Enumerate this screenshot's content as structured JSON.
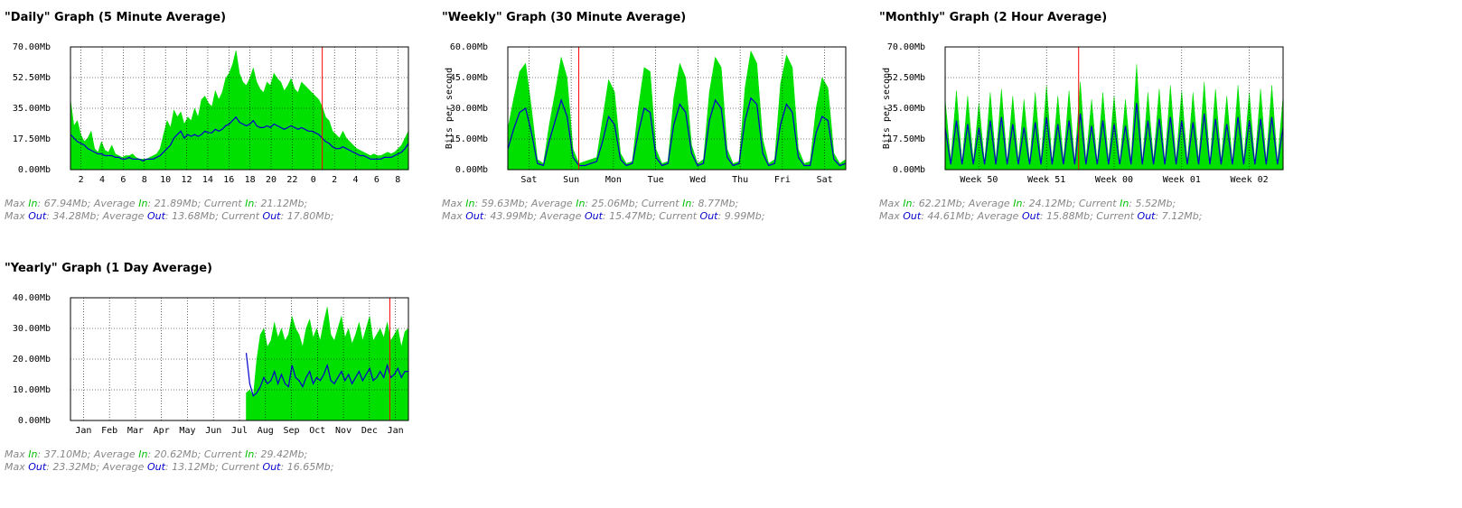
{
  "colors": {
    "in": "#00e000",
    "out": "#0000cc",
    "now": "#ff0000",
    "grid": "#000000"
  },
  "labels": {
    "max": "Max",
    "average": "Average",
    "current": "Current",
    "in": "In",
    "out": "Out",
    "sep": ":",
    "end": ";"
  },
  "ylabel": "Bits per second",
  "chart_data": [
    {
      "key": "daily",
      "type": "area",
      "title": "\"Daily\" Graph (5 Minute Average)",
      "ylim": [
        0,
        70
      ],
      "yticks": [
        "0.00Mb",
        "17.50Mb",
        "35.00Mb",
        "52.50Mb",
        "70.00Mb"
      ],
      "ylabel": "",
      "xticks": [
        "2",
        "4",
        "6",
        "8",
        "10",
        "12",
        "14",
        "16",
        "18",
        "20",
        "22",
        "0",
        "2",
        "4",
        "6",
        "8"
      ],
      "grid": true,
      "now_marker": 0.745,
      "series": [
        {
          "name": "In",
          "values": [
            40,
            25,
            28,
            20,
            16,
            18,
            22,
            12,
            10,
            16,
            11,
            10,
            14,
            9,
            8,
            7,
            8,
            8,
            9,
            7,
            6,
            6,
            6,
            7,
            8,
            9,
            12,
            20,
            28,
            24,
            34,
            30,
            33,
            26,
            30,
            28,
            35,
            30,
            40,
            42,
            38,
            36,
            45,
            40,
            44,
            52,
            55,
            60,
            68,
            55,
            50,
            48,
            52,
            58,
            50,
            46,
            44,
            50,
            48,
            55,
            52,
            50,
            45,
            48,
            52,
            46,
            44,
            50,
            48,
            46,
            44,
            42,
            40,
            36,
            30,
            28,
            22,
            20,
            18,
            22,
            18,
            16,
            14,
            12,
            11,
            10,
            9,
            8,
            9,
            8,
            8,
            9,
            10,
            9,
            10,
            12,
            14,
            18,
            22
          ]
        },
        {
          "name": "Out",
          "values": [
            20,
            18,
            16,
            15,
            14,
            12,
            11,
            10,
            9,
            9,
            8,
            8,
            8,
            7,
            7,
            6,
            6,
            7,
            6,
            6,
            6,
            5,
            6,
            6,
            6,
            7,
            8,
            10,
            12,
            14,
            18,
            20,
            22,
            18,
            20,
            19,
            20,
            19,
            20,
            22,
            21,
            21,
            23,
            22,
            23,
            25,
            26,
            28,
            30,
            27,
            26,
            25,
            26,
            28,
            25,
            24,
            24,
            25,
            24,
            26,
            25,
            24,
            23,
            24,
            25,
            24,
            23,
            24,
            23,
            22,
            22,
            21,
            20,
            18,
            16,
            15,
            13,
            12,
            12,
            13,
            12,
            11,
            10,
            9,
            8,
            8,
            7,
            6,
            6,
            6,
            6,
            7,
            7,
            7,
            8,
            9,
            10,
            12,
            15
          ]
        }
      ],
      "stats": {
        "in": {
          "max": "67.94Mb",
          "avg": "21.89Mb",
          "cur": "21.12Mb"
        },
        "out": {
          "max": "34.28Mb",
          "avg": "13.68Mb",
          "cur": "17.80Mb"
        }
      }
    },
    {
      "key": "weekly",
      "type": "area",
      "title": "\"Weekly\" Graph (30 Minute Average)",
      "ylim": [
        0,
        60
      ],
      "yticks": [
        "0.00Mb",
        "15.00Mb",
        "30.00Mb",
        "45.00Mb",
        "60.00Mb"
      ],
      "ylabel": "Bits per second",
      "xticks": [
        "Sat",
        "Sun",
        "Mon",
        "Tue",
        "Wed",
        "Thu",
        "Fri",
        "Sat"
      ],
      "grid": true,
      "now_marker": 0.21,
      "series": [
        {
          "name": "In",
          "values": [
            20,
            35,
            48,
            52,
            30,
            5,
            3,
            22,
            38,
            55,
            45,
            10,
            3,
            4,
            5,
            6,
            25,
            44,
            38,
            8,
            3,
            4,
            30,
            50,
            48,
            10,
            3,
            4,
            35,
            52,
            45,
            12,
            3,
            5,
            38,
            55,
            50,
            10,
            3,
            4,
            40,
            58,
            52,
            15,
            3,
            5,
            42,
            56,
            50,
            10,
            3,
            4,
            30,
            45,
            40,
            8,
            3,
            5
          ]
        },
        {
          "name": "Out",
          "values": [
            10,
            20,
            28,
            30,
            18,
            3,
            2,
            14,
            24,
            34,
            26,
            6,
            2,
            2,
            3,
            4,
            14,
            26,
            22,
            5,
            2,
            3,
            18,
            30,
            28,
            6,
            2,
            3,
            22,
            32,
            28,
            8,
            2,
            3,
            24,
            34,
            30,
            6,
            2,
            3,
            24,
            35,
            32,
            8,
            2,
            3,
            22,
            32,
            28,
            6,
            2,
            2,
            18,
            26,
            24,
            5,
            2,
            3
          ]
        }
      ],
      "stats": {
        "in": {
          "max": "59.63Mb",
          "avg": "25.06Mb",
          "cur": "8.77Mb"
        },
        "out": {
          "max": "43.99Mb",
          "avg": "15.47Mb",
          "cur": "9.99Mb"
        }
      }
    },
    {
      "key": "monthly",
      "type": "area",
      "title": "\"Monthly\" Graph (2 Hour Average)",
      "ylim": [
        0,
        70
      ],
      "yticks": [
        "0.00Mb",
        "17.50Mb",
        "35.00Mb",
        "52.50Mb",
        "70.00Mb"
      ],
      "ylabel": "Bits per second",
      "xticks": [
        "Week 50",
        "Week 51",
        "Week 00",
        "Week 01",
        "Week 02"
      ],
      "grid": true,
      "now_marker": 0.395,
      "series": [
        {
          "name": "In",
          "values": [
            40,
            5,
            45,
            4,
            42,
            5,
            38,
            4,
            44,
            5,
            46,
            4,
            42,
            5,
            40,
            4,
            44,
            5,
            48,
            4,
            42,
            5,
            45,
            4,
            50,
            5,
            40,
            4,
            44,
            5,
            42,
            4,
            40,
            5,
            60,
            4,
            44,
            5,
            46,
            4,
            48,
            5,
            45,
            4,
            44,
            5,
            50,
            4,
            46,
            5,
            42,
            4,
            48,
            5,
            44,
            4,
            46,
            5,
            48,
            4,
            42
          ]
        },
        {
          "name": "Out",
          "values": [
            24,
            3,
            28,
            3,
            26,
            3,
            24,
            3,
            28,
            3,
            30,
            3,
            26,
            3,
            24,
            3,
            27,
            3,
            30,
            3,
            26,
            3,
            28,
            3,
            32,
            3,
            25,
            3,
            28,
            3,
            26,
            3,
            25,
            3,
            38,
            3,
            28,
            3,
            29,
            3,
            30,
            3,
            28,
            3,
            27,
            3,
            32,
            3,
            29,
            3,
            26,
            3,
            30,
            3,
            28,
            3,
            29,
            3,
            30,
            3,
            24
          ]
        }
      ],
      "stats": {
        "in": {
          "max": "62.21Mb",
          "avg": "24.12Mb",
          "cur": "5.52Mb"
        },
        "out": {
          "max": "44.61Mb",
          "avg": "15.88Mb",
          "cur": "7.12Mb"
        }
      }
    },
    {
      "key": "yearly",
      "type": "area",
      "title": "\"Yearly\" Graph (1 Day Average)",
      "ylim": [
        0,
        40
      ],
      "yticks": [
        "0.00Mb",
        "10.00Mb",
        "20.00Mb",
        "30.00Mb",
        "40.00Mb"
      ],
      "ylabel": "",
      "xticks": [
        "Jan",
        "Feb",
        "Mar",
        "Apr",
        "May",
        "Jun",
        "Jul",
        "Aug",
        "Sep",
        "Oct",
        "Nov",
        "Dec",
        "Jan"
      ],
      "grid": true,
      "now_marker": 0.945,
      "data_start": 0.52,
      "series": [
        {
          "name": "In",
          "values": [
            9,
            10,
            8,
            20,
            28,
            30,
            24,
            26,
            32,
            27,
            30,
            26,
            28,
            34,
            30,
            28,
            24,
            30,
            33,
            27,
            30,
            26,
            32,
            37,
            28,
            26,
            30,
            34,
            27,
            30,
            25,
            28,
            32,
            26,
            30,
            34,
            26,
            28,
            30,
            27,
            32,
            26,
            28,
            30,
            24,
            29,
            30
          ]
        },
        {
          "name": "Out",
          "values": [
            22,
            12,
            8,
            9,
            11,
            14,
            12,
            13,
            16,
            12,
            15,
            12,
            11,
            18,
            14,
            13,
            11,
            14,
            16,
            12,
            14,
            13,
            15,
            18,
            13,
            12,
            14,
            16,
            13,
            15,
            12,
            14,
            16,
            13,
            15,
            17,
            13,
            14,
            16,
            14,
            18,
            14,
            15,
            17,
            14,
            16,
            16
          ]
        }
      ],
      "stats": {
        "in": {
          "max": "37.10Mb",
          "avg": "20.62Mb",
          "cur": "29.42Mb"
        },
        "out": {
          "max": "23.32Mb",
          "avg": "13.12Mb",
          "cur": "16.65Mb"
        }
      }
    }
  ]
}
